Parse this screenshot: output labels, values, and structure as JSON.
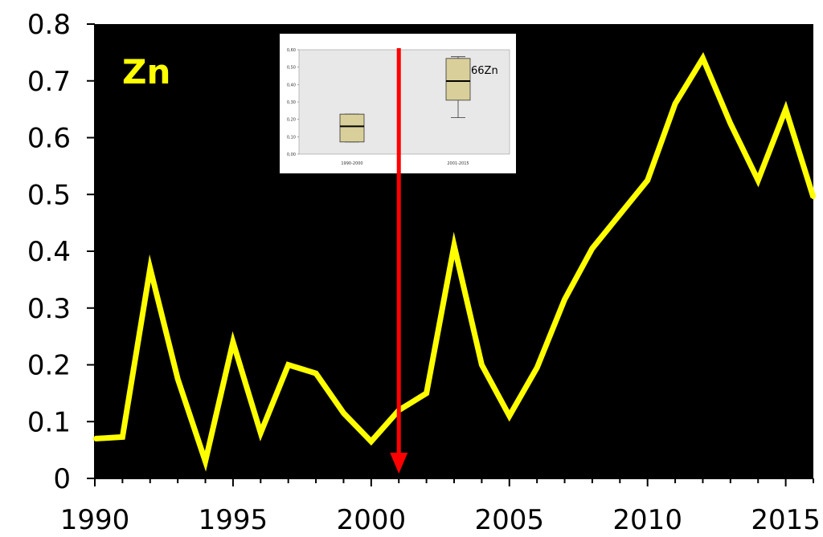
{
  "colors": {
    "plot_bg": "#000000",
    "line": "#ffff00",
    "title": "#ffff00",
    "arrow": "#ff0000",
    "box_fill": "#d8cf9a",
    "inset_bg": "#e8e8e8"
  },
  "chart_data": [
    {
      "type": "line",
      "title": "Zn",
      "xlabel": "",
      "ylabel": "",
      "xlim": [
        1990,
        2016
      ],
      "ylim": [
        0,
        0.8
      ],
      "grid": false,
      "x_ticks": [
        "1990",
        "1995",
        "2000",
        "2005",
        "2010",
        "2015"
      ],
      "y_ticks": [
        "0",
        "0.1",
        "0.2",
        "0.3",
        "0.4",
        "0.5",
        "0.6",
        "0.7",
        "0.8"
      ],
      "x": [
        1990,
        1991,
        1992,
        1993,
        1994,
        1995,
        1996,
        1997,
        1998,
        1999,
        2000,
        2001,
        2002,
        2003,
        2004,
        2005,
        2006,
        2007,
        2008,
        2009,
        2010,
        2011,
        2012,
        2013,
        2014,
        2015,
        2016
      ],
      "series": [
        {
          "values": [
            0.07,
            0.073,
            0.37,
            0.175,
            0.03,
            0.24,
            0.08,
            0.2,
            0.185,
            0.115,
            0.065,
            0.12,
            0.15,
            0.41,
            0.2,
            0.11,
            0.195,
            0.315,
            0.405,
            0.465,
            0.525,
            0.66,
            0.74,
            0.625,
            0.525,
            0.65,
            0.495
          ]
        }
      ],
      "annotation_arrow_x": 2001
    },
    {
      "type": "box",
      "title": "",
      "label": "66Zn",
      "categories": [
        "1990-2000",
        "2001-2015"
      ],
      "y_ticks": [
        "0,00",
        "0,10",
        "0,20",
        "0,30",
        "0,40",
        "0,50",
        "0,60"
      ],
      "ylim": [
        0,
        0.6
      ],
      "boxes": [
        {
          "whisker_low": 0.07,
          "q1": 0.07,
          "median": 0.16,
          "q3": 0.23,
          "whisker_high": 0.23
        },
        {
          "whisker_low": 0.21,
          "q1": 0.31,
          "median": 0.42,
          "q3": 0.55,
          "whisker_high": 0.56
        }
      ]
    }
  ]
}
